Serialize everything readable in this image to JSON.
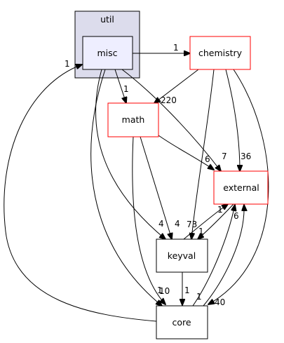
{
  "cluster": {
    "title": "util"
  },
  "nodes": {
    "misc": "misc",
    "chemistry": "chemistry",
    "math": "math",
    "external": "external",
    "keyval": "keyval",
    "core": "core"
  },
  "edges": {
    "misc_chemistry": "1",
    "misc_math": "1",
    "misc_keyval": "4",
    "misc_core": "1",
    "misc_external": "7",
    "core_misc": "1",
    "chemistry_math": "220",
    "chemistry_external": "36",
    "chemistry_keyval": "73",
    "chemistry_core": "40",
    "math_external": "6",
    "math_keyval": "4",
    "math_core": "10",
    "keyval_external": "1",
    "keyval_core": "1",
    "external_keyval": "1",
    "external_core": "6",
    "core_external": "1"
  },
  "colors": {
    "cluster_fill": "#dcdcec",
    "cluster_stroke": "#000000",
    "focus_fill": "#eeeeff",
    "red_border": "#ff0000",
    "black_border": "#000000"
  }
}
